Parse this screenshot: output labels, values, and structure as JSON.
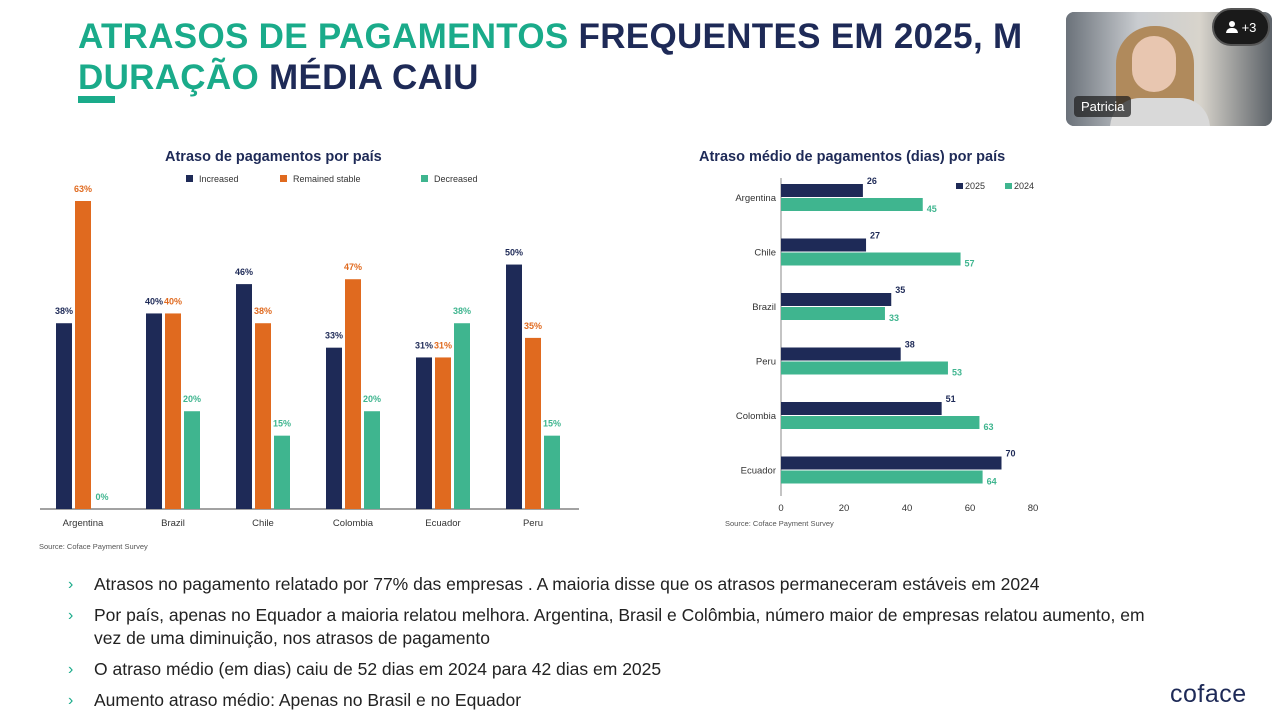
{
  "slide": {
    "title_parts": [
      {
        "text": "ATRASOS DE PAGAMENTOS",
        "highlight": true
      },
      {
        "text": " FREQUENTES EM 2025, M",
        "highlight": false
      },
      {
        "text": "DURAÇÃO",
        "highlight": true
      },
      {
        "text": " MÉDIA CAIU",
        "highlight": false
      }
    ],
    "bullets": [
      "Atrasos no pagamento relatado por 77% das empresas . A maioria disse que os atrasos permaneceram estáveis em 2024",
      "Por país, apenas no Equador a maioria relatou melhora. Argentina, Brasil e Colômbia, número maior de empresas relatou aumento, em vez de uma diminuição, nos atrasos de pagamento",
      "O atraso médio (em dias) caiu de 52 dias em 2024 para 42 dias em 2025",
      "Aumento atraso médio: Apenas no Brasil e no Equador"
    ],
    "bullet_marker": "›",
    "logo": "coface"
  },
  "video": {
    "participant_name": "Patricia",
    "participants_badge": "+3",
    "icon": "person-icon"
  },
  "colors": {
    "navy": "#1e2a57",
    "orange": "#e06a1f",
    "green": "#3fb58f",
    "accent": "#1aab8a"
  },
  "chart_data": [
    {
      "type": "bar",
      "title": "Atraso de pagamentos por país",
      "categories": [
        "Argentina",
        "Brazil",
        "Chile",
        "Colombia",
        "Ecuador",
        "Peru"
      ],
      "series": [
        {
          "name": "Increased",
          "color": "#1e2a57",
          "values": [
            38,
            40,
            46,
            33,
            31,
            50
          ]
        },
        {
          "name": "Remained stable",
          "color": "#e06a1f",
          "values": [
            63,
            40,
            38,
            47,
            31,
            35
          ]
        },
        {
          "name": "Decreased",
          "color": "#3fb58f",
          "values": [
            0,
            20,
            15,
            20,
            38,
            15
          ]
        }
      ],
      "ylim": [
        0,
        70
      ],
      "value_suffix": "%",
      "legend": "top",
      "grid": false,
      "source": "Source: Coface Payment Survey"
    },
    {
      "type": "bar",
      "orientation": "horizontal",
      "title": "Atraso  médio de pagamentos (dias) por país",
      "categories": [
        "Argentina",
        "Chile",
        "Brazil",
        "Peru",
        "Colombia",
        "Ecuador"
      ],
      "series": [
        {
          "name": "2025",
          "color": "#1e2a57",
          "values": [
            26,
            27,
            35,
            38,
            51,
            70
          ]
        },
        {
          "name": "2024",
          "color": "#3fb58f",
          "values": [
            45,
            57,
            33,
            53,
            63,
            64
          ]
        }
      ],
      "xlim": [
        0,
        80
      ],
      "xticks": [
        0,
        20,
        40,
        60,
        80
      ],
      "legend": "top-right",
      "grid": false,
      "source": "Source: Coface Payment Survey"
    }
  ]
}
